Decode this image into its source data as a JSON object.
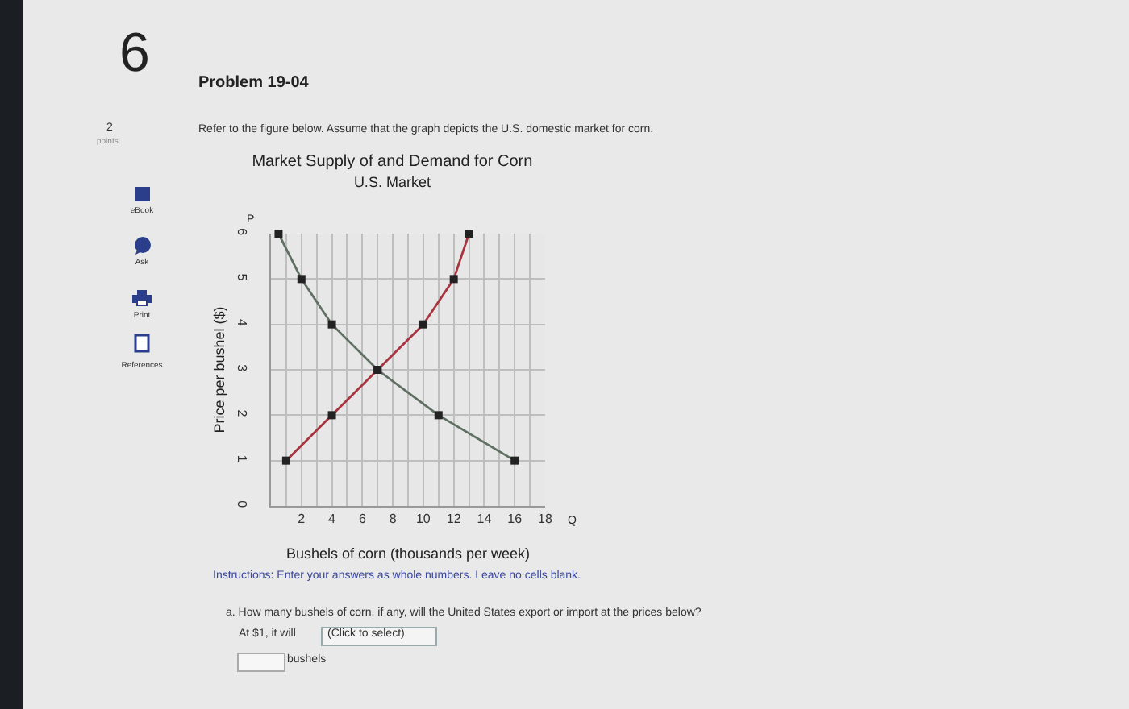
{
  "chart_data": {
    "type": "line",
    "title": "Market Supply of and Demand for Corn",
    "subtitle": "U.S. Market",
    "xlabel": "Bushels of corn (thousands per week)",
    "ylabel": "Price per bushel ($)",
    "series": [
      {
        "color": "#5f6f62",
        "x": [
          0.5,
          2,
          4,
          7,
          11,
          16
        ],
        "values": [
          6,
          5,
          4,
          3,
          2,
          1
        ]
      },
      {
        "color": "#a8343f",
        "x": [
          1,
          4,
          7,
          10,
          12,
          13
        ],
        "values": [
          1,
          2,
          3,
          4,
          5,
          6
        ]
      }
    ],
    "xlim": [
      0,
      18
    ],
    "ylim": [
      0,
      6
    ],
    "xticks": [
      {
        "value": 1,
        "label": null
      },
      2,
      {
        "value": 3,
        "label": null
      },
      4,
      {
        "value": 5,
        "label": null
      },
      6,
      {
        "value": 7,
        "label": null
      },
      8,
      {
        "value": 9,
        "label": null
      },
      10,
      {
        "value": 11,
        "label": null
      },
      12,
      {
        "value": 13,
        "label": null
      },
      14,
      {
        "value": 15,
        "label": null
      },
      16,
      {
        "value": 17,
        "label": null
      },
      18
    ],
    "yticks": [
      0,
      1,
      2,
      3,
      4,
      5,
      6
    ],
    "grid": true,
    "marker": "square",
    "line_style": "solid",
    "annotations": [
      "P",
      "Q",
      "6",
      "Problem 19-04",
      "2",
      "points",
      "Refer to the figure below. Assume that the graph depicts the U.S. domestic market for corn.",
      "eBook",
      "Ask",
      "Print",
      "References",
      "Instructions: Enter your answers as whole numbers. Leave no cells blank.",
      "a. How many bushels of corn, if any, will the United States export or import at the prices below?",
      "At $1, it will",
      "(Click to select)",
      "bushels"
    ]
  }
}
